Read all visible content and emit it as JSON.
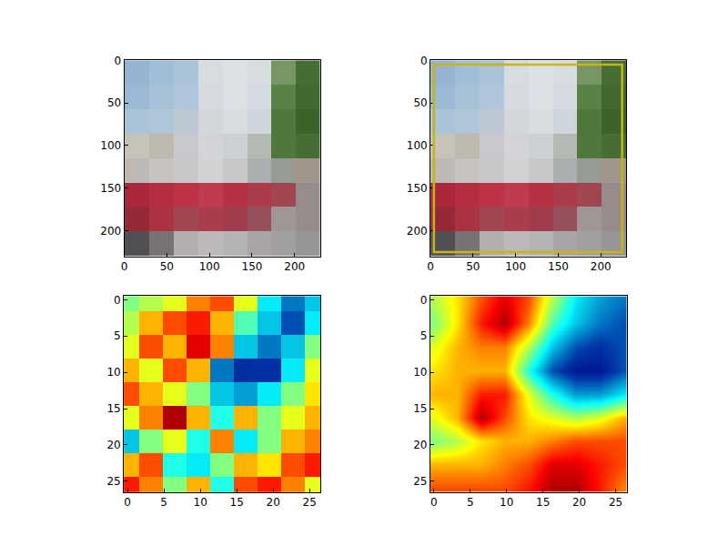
{
  "chart_data": [
    {
      "type": "image",
      "xlim": [
        0,
        230
      ],
      "ylim": [
        230,
        0
      ],
      "xticks": [
        0,
        50,
        100,
        150,
        200
      ],
      "yticks": [
        0,
        50,
        100,
        150,
        200
      ],
      "image_cells": [
        [
          [
            150,
            180,
            210
          ],
          [
            160,
            190,
            215
          ],
          [
            170,
            195,
            215
          ],
          [
            215,
            220,
            225
          ],
          [
            220,
            225,
            230
          ],
          [
            215,
            220,
            225
          ],
          [
            120,
            150,
            100
          ],
          [
            70,
            110,
            50
          ]
        ],
        [
          [
            155,
            185,
            212
          ],
          [
            165,
            192,
            215
          ],
          [
            175,
            198,
            218
          ],
          [
            212,
            218,
            224
          ],
          [
            220,
            225,
            230
          ],
          [
            212,
            218,
            224
          ],
          [
            90,
            130,
            70
          ],
          [
            65,
            105,
            45
          ]
        ],
        [
          [
            170,
            195,
            215
          ],
          [
            175,
            198,
            216
          ],
          [
            190,
            200,
            210
          ],
          [
            210,
            215,
            220
          ],
          [
            215,
            220,
            225
          ],
          [
            205,
            212,
            218
          ],
          [
            80,
            120,
            60
          ],
          [
            60,
            100,
            40
          ]
        ],
        [
          [
            200,
            195,
            185
          ],
          [
            190,
            185,
            175
          ],
          [
            200,
            200,
            205
          ],
          [
            210,
            212,
            215
          ],
          [
            205,
            208,
            212
          ],
          [
            180,
            185,
            180
          ],
          [
            80,
            120,
            60
          ],
          [
            70,
            110,
            50
          ]
        ],
        [
          [
            190,
            185,
            180
          ],
          [
            200,
            195,
            190
          ],
          [
            200,
            200,
            200
          ],
          [
            210,
            210,
            210
          ],
          [
            200,
            200,
            200
          ],
          [
            170,
            175,
            175
          ],
          [
            150,
            155,
            150
          ],
          [
            160,
            150,
            140
          ]
        ],
        [
          [
            170,
            40,
            60
          ],
          [
            180,
            45,
            65
          ],
          [
            190,
            50,
            70
          ],
          [
            190,
            60,
            80
          ],
          [
            180,
            50,
            70
          ],
          [
            170,
            60,
            75
          ],
          [
            160,
            70,
            80
          ],
          [
            150,
            140,
            140
          ]
        ],
        [
          [
            150,
            40,
            55
          ],
          [
            170,
            50,
            65
          ],
          [
            160,
            70,
            80
          ],
          [
            170,
            60,
            75
          ],
          [
            160,
            60,
            75
          ],
          [
            150,
            80,
            90
          ],
          [
            160,
            150,
            150
          ],
          [
            150,
            140,
            140
          ]
        ],
        [
          [
            80,
            80,
            85
          ],
          [
            120,
            115,
            115
          ],
          [
            180,
            175,
            175
          ],
          [
            190,
            185,
            185
          ],
          [
            180,
            180,
            180
          ],
          [
            170,
            165,
            165
          ],
          [
            160,
            160,
            160
          ],
          [
            150,
            150,
            150
          ]
        ]
      ]
    },
    {
      "type": "image",
      "xlim": [
        0,
        230
      ],
      "ylim": [
        230,
        0
      ],
      "xticks": [
        0,
        50,
        100,
        150,
        200
      ],
      "yticks": [
        0,
        50,
        100,
        150,
        200
      ],
      "image_cells": [
        [
          [
            150,
            180,
            210
          ],
          [
            160,
            190,
            215
          ],
          [
            170,
            195,
            215
          ],
          [
            215,
            220,
            225
          ],
          [
            220,
            225,
            230
          ],
          [
            215,
            220,
            225
          ],
          [
            120,
            150,
            100
          ],
          [
            70,
            110,
            50
          ]
        ],
        [
          [
            155,
            185,
            212
          ],
          [
            165,
            192,
            215
          ],
          [
            175,
            198,
            218
          ],
          [
            212,
            218,
            224
          ],
          [
            220,
            225,
            230
          ],
          [
            212,
            218,
            224
          ],
          [
            90,
            130,
            70
          ],
          [
            65,
            105,
            45
          ]
        ],
        [
          [
            170,
            195,
            215
          ],
          [
            175,
            198,
            216
          ],
          [
            190,
            200,
            210
          ],
          [
            210,
            215,
            220
          ],
          [
            215,
            220,
            225
          ],
          [
            205,
            212,
            218
          ],
          [
            80,
            120,
            60
          ],
          [
            60,
            100,
            40
          ]
        ],
        [
          [
            200,
            195,
            185
          ],
          [
            190,
            185,
            175
          ],
          [
            200,
            200,
            205
          ],
          [
            210,
            212,
            215
          ],
          [
            205,
            208,
            212
          ],
          [
            180,
            185,
            180
          ],
          [
            80,
            120,
            60
          ],
          [
            70,
            110,
            50
          ]
        ],
        [
          [
            190,
            185,
            180
          ],
          [
            200,
            195,
            190
          ],
          [
            200,
            200,
            200
          ],
          [
            210,
            210,
            210
          ],
          [
            200,
            200,
            200
          ],
          [
            170,
            175,
            175
          ],
          [
            150,
            155,
            150
          ],
          [
            160,
            150,
            140
          ]
        ],
        [
          [
            170,
            40,
            60
          ],
          [
            180,
            45,
            65
          ],
          [
            190,
            50,
            70
          ],
          [
            190,
            60,
            80
          ],
          [
            180,
            50,
            70
          ],
          [
            170,
            60,
            75
          ],
          [
            160,
            70,
            80
          ],
          [
            150,
            140,
            140
          ]
        ],
        [
          [
            150,
            40,
            55
          ],
          [
            170,
            50,
            65
          ],
          [
            160,
            70,
            80
          ],
          [
            170,
            60,
            75
          ],
          [
            160,
            60,
            75
          ],
          [
            150,
            80,
            90
          ],
          [
            160,
            150,
            150
          ],
          [
            150,
            140,
            140
          ]
        ],
        [
          [
            80,
            80,
            85
          ],
          [
            120,
            115,
            115
          ],
          [
            180,
            175,
            175
          ],
          [
            190,
            185,
            185
          ],
          [
            180,
            180,
            180
          ],
          [
            170,
            165,
            165
          ],
          [
            160,
            160,
            160
          ],
          [
            150,
            150,
            150
          ]
        ]
      ],
      "box": {
        "x0": 4,
        "y0": 5,
        "x1": 225,
        "y1": 225,
        "color": "#c8b415"
      }
    },
    {
      "type": "heatmap",
      "marker": "blocky",
      "xlim": [
        -0.5,
        26.5
      ],
      "ylim": [
        26.5,
        -0.5
      ],
      "xticks": [
        0,
        5,
        10,
        15,
        20,
        25
      ],
      "yticks": [
        0,
        5,
        10,
        15,
        20,
        25
      ],
      "color": "Jet",
      "zlim": [
        0,
        1
      ],
      "x": [
        0,
        3.25,
        6.5,
        9.75,
        13,
        16.25,
        19.5,
        22.75,
        26
      ],
      "y": [
        0,
        3.25,
        6.5,
        9.75,
        13,
        16.25,
        19.5,
        22.75,
        26
      ],
      "cells": [
        [
          0.5,
          0.55,
          0.6,
          0.75,
          0.8,
          0.6,
          0.35,
          0.2,
          0.3
        ],
        [
          0.55,
          0.7,
          0.8,
          0.85,
          0.7,
          0.45,
          0.3,
          0.15,
          0.35
        ],
        [
          0.6,
          0.8,
          0.7,
          0.9,
          0.75,
          0.3,
          0.2,
          0.3,
          0.5
        ],
        [
          0.7,
          0.6,
          0.8,
          0.7,
          0.2,
          0.1,
          0.1,
          0.35,
          0.6
        ],
        [
          0.8,
          0.7,
          0.6,
          0.5,
          0.3,
          0.25,
          0.35,
          0.5,
          0.65
        ],
        [
          0.6,
          0.75,
          0.95,
          0.7,
          0.4,
          0.7,
          0.5,
          0.6,
          0.7
        ],
        [
          0.3,
          0.5,
          0.6,
          0.4,
          0.75,
          0.35,
          0.5,
          0.7,
          0.75
        ],
        [
          0.7,
          0.8,
          0.4,
          0.35,
          0.5,
          0.7,
          0.65,
          0.8,
          0.85
        ],
        [
          0.85,
          0.75,
          0.5,
          0.7,
          0.4,
          0.8,
          0.85,
          0.75,
          0.6
        ]
      ]
    },
    {
      "type": "heatmap",
      "marker": "smooth",
      "xlim": [
        -0.5,
        26.5
      ],
      "ylim": [
        26.5,
        -0.5
      ],
      "xticks": [
        0,
        5,
        10,
        15,
        20,
        25
      ],
      "yticks": [
        0,
        5,
        10,
        15,
        20,
        25
      ],
      "color": "Jet",
      "zlim": [
        0,
        1
      ],
      "x": [
        0,
        3.25,
        6.5,
        9.75,
        13,
        16.25,
        19.5,
        22.75,
        26
      ],
      "y": [
        0,
        3.25,
        6.5,
        9.75,
        13,
        16.25,
        19.5,
        22.75,
        26
      ],
      "cells": [
        [
          0.55,
          0.65,
          0.8,
          0.9,
          0.8,
          0.55,
          0.35,
          0.25,
          0.2
        ],
        [
          0.5,
          0.65,
          0.85,
          0.95,
          0.75,
          0.45,
          0.3,
          0.2,
          0.15
        ],
        [
          0.6,
          0.7,
          0.75,
          0.75,
          0.55,
          0.3,
          0.15,
          0.1,
          0.15
        ],
        [
          0.65,
          0.7,
          0.7,
          0.7,
          0.4,
          0.15,
          0.05,
          0.05,
          0.15
        ],
        [
          0.7,
          0.7,
          0.85,
          0.85,
          0.6,
          0.4,
          0.25,
          0.25,
          0.35
        ],
        [
          0.6,
          0.7,
          0.95,
          0.8,
          0.65,
          0.6,
          0.55,
          0.6,
          0.7
        ],
        [
          0.5,
          0.55,
          0.65,
          0.7,
          0.7,
          0.75,
          0.8,
          0.8,
          0.8
        ],
        [
          0.7,
          0.7,
          0.7,
          0.75,
          0.8,
          0.9,
          0.9,
          0.85,
          0.8
        ],
        [
          0.8,
          0.8,
          0.8,
          0.8,
          0.85,
          0.95,
          0.95,
          0.85,
          0.75
        ]
      ]
    }
  ]
}
